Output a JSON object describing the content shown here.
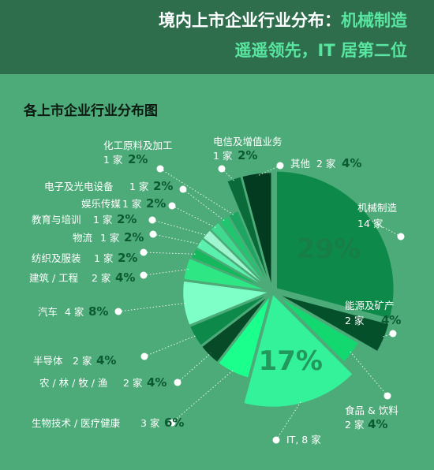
{
  "header": {
    "line1_prefix": "境内上市企业行业分布：",
    "line1_highlight": "机械制造",
    "line2": "遥遥领先，IT 居第二位"
  },
  "chart_data": {
    "type": "pie",
    "title": "各上市企业行业分布图",
    "unit": "家",
    "slices": [
      {
        "name": "机械制造",
        "count": 14,
        "count_label": "14 家",
        "percent": 29,
        "percent_label": "29%",
        "color": "#0d8a4a"
      },
      {
        "name": "能源及矿产",
        "count": 2,
        "count_label": "2 家",
        "percent": 4,
        "percent_label": "4%",
        "color": "#04502b"
      },
      {
        "name": "食品 & 饮料",
        "count": 2,
        "count_label": "2 家",
        "percent": 4,
        "percent_label": "4%",
        "color": "#13d870"
      },
      {
        "name": "IT",
        "count": 8,
        "count_label": "IT, 8 家",
        "percent": 17,
        "percent_label": "17%",
        "color": "#34f29a"
      },
      {
        "name": "生物技术 / 医疗健康",
        "count": 3,
        "count_label": "3 家",
        "percent": 6,
        "percent_label": "6%",
        "color": "#1bff8d"
      },
      {
        "name": "农 / 林 / 牧 / 渔",
        "count": 2,
        "count_label": "2 家",
        "percent": 4,
        "percent_label": "4%",
        "color": "#064a28"
      },
      {
        "name": "半导体",
        "count": 2,
        "count_label": "2 家",
        "percent": 4,
        "percent_label": "4%",
        "color": "#0d8a4a"
      },
      {
        "name": "汽车",
        "count": 4,
        "count_label": "4 家",
        "percent": 8,
        "percent_label": "8%",
        "color": "#7dffc7"
      },
      {
        "name": "建筑 / 工程",
        "count": 2,
        "count_label": "2 家",
        "percent": 4,
        "percent_label": "4%",
        "color": "#2fe685"
      },
      {
        "name": "纺织及服装",
        "count": 1,
        "count_label": "1 家",
        "percent": 2,
        "percent_label": "2%",
        "color": "#15b85c"
      },
      {
        "name": "物流",
        "count": 1,
        "count_label": "1 家",
        "percent": 2,
        "percent_label": "2%",
        "color": "#5cf0ae"
      },
      {
        "name": "教育与培训",
        "count": 1,
        "count_label": "1 家",
        "percent": 2,
        "percent_label": "2%",
        "color": "#9ef5cf"
      },
      {
        "name": "娱乐传媒",
        "count": 1,
        "count_label": "1 家",
        "percent": 2,
        "percent_label": "2%",
        "color": "#3fd990"
      },
      {
        "name": "电子及光电设备",
        "count": 1,
        "count_label": "1 家",
        "percent": 2,
        "percent_label": "2%",
        "color": "#22c46f"
      },
      {
        "name": "化工原料及加工",
        "count": 1,
        "count_label": "1 家",
        "percent": 2,
        "percent_label": "2%",
        "color": "#1ea561"
      },
      {
        "name": "电信及增值业务",
        "count": 1,
        "count_label": "1 家",
        "percent": 2,
        "percent_label": "2%",
        "color": "#0a6a3a"
      },
      {
        "name": "其他",
        "count": 2,
        "count_label": "2 家",
        "percent": 4,
        "percent_label": "4%",
        "color": "#033b20"
      }
    ]
  }
}
